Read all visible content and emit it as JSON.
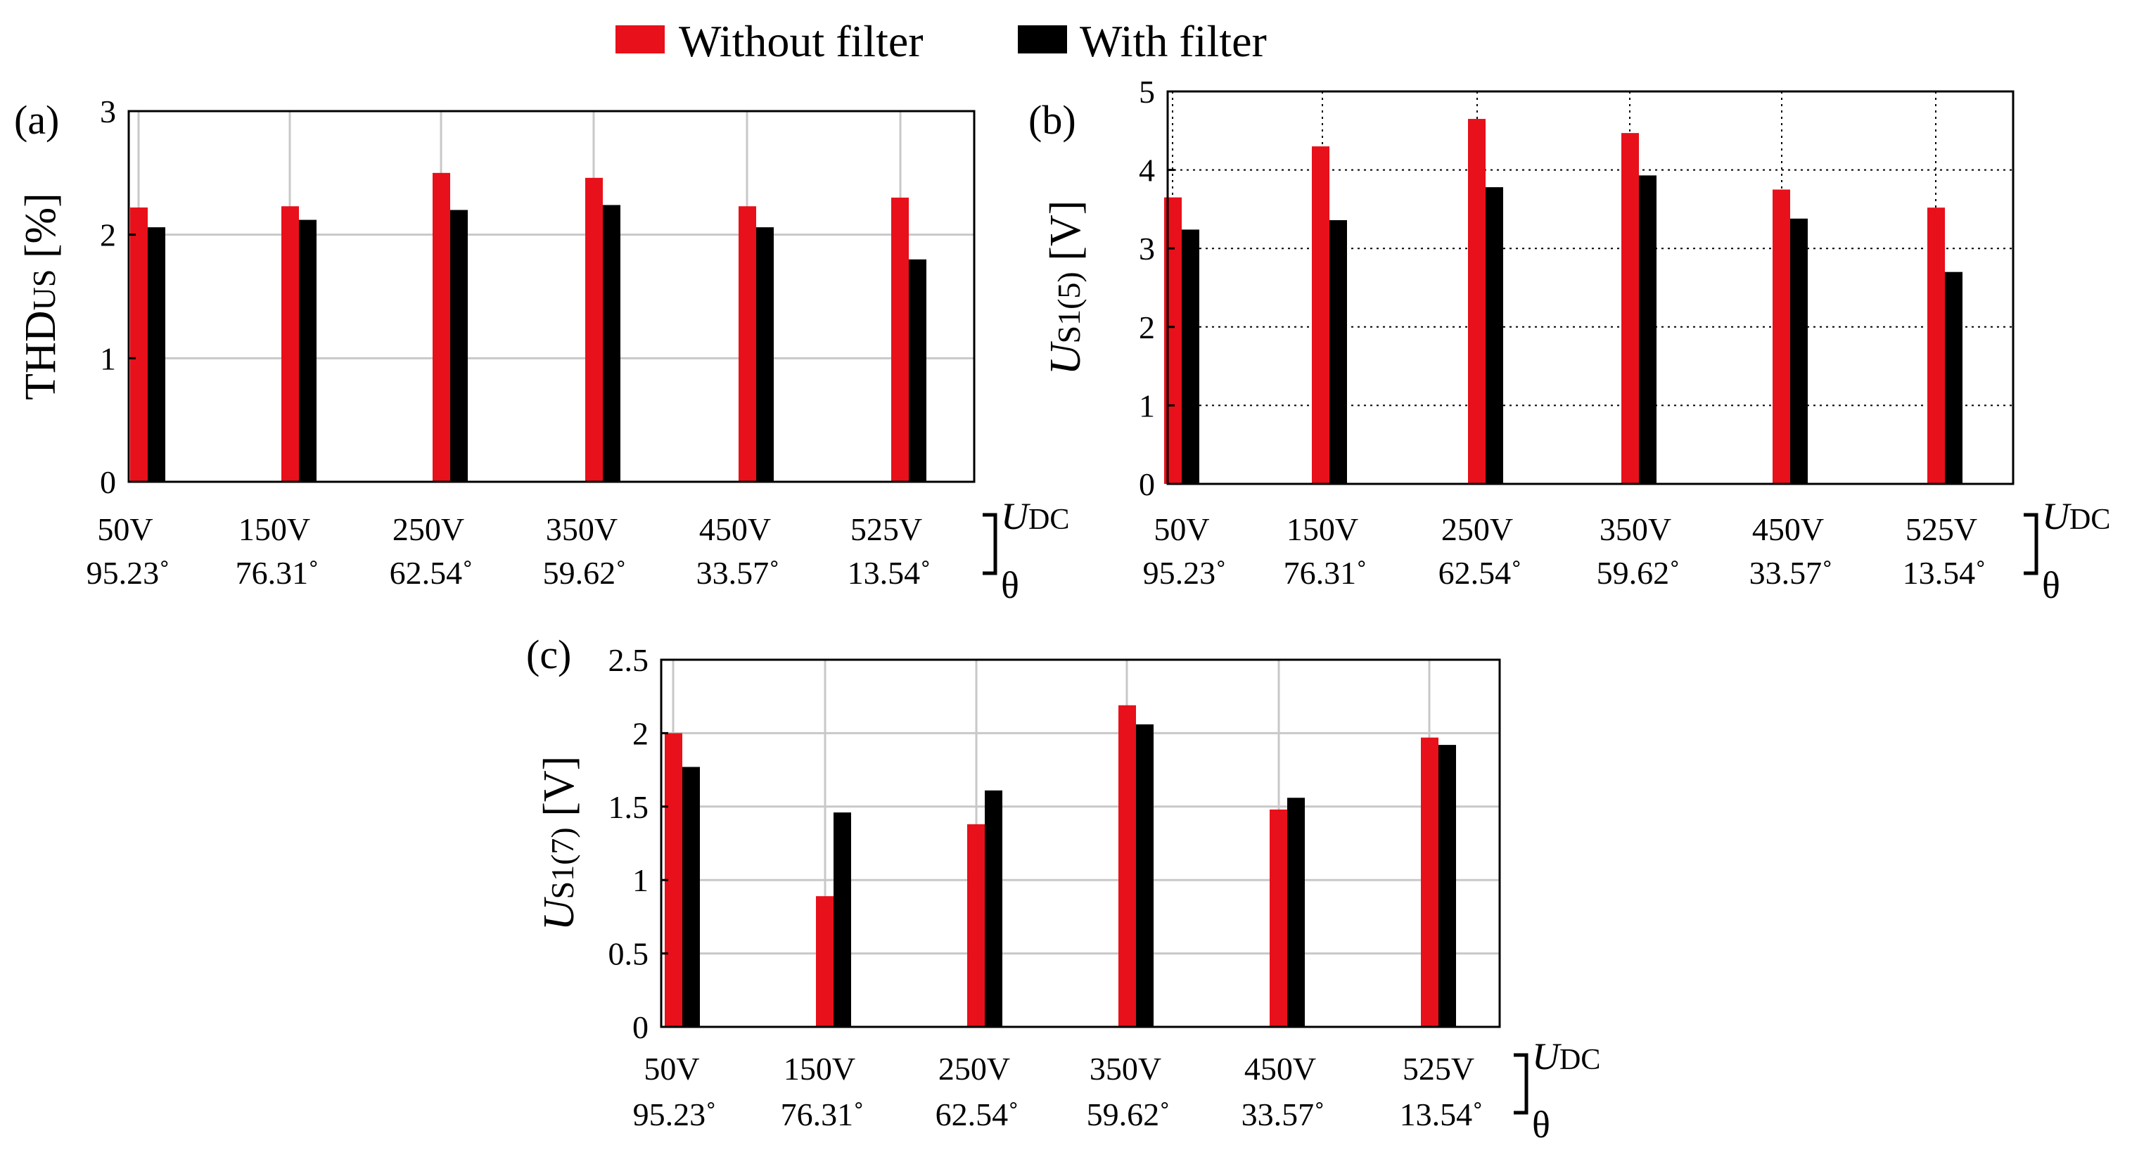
{
  "colors": {
    "without": "#e8101a",
    "with": "#000000",
    "grid": "#c8c8c8",
    "axis": "#000000"
  },
  "legend": {
    "without_label": "Without filter",
    "with_label": "With filter"
  },
  "chart_data": [
    {
      "id": "a",
      "type": "bar",
      "panel_label": "(a)",
      "ylabel_main": "THD",
      "ylabel_sub": "US",
      "ylabel_suffix": " [%]",
      "ylim": [
        0,
        3
      ],
      "yticks": [
        "0",
        "1",
        "2",
        "3"
      ],
      "grid": "solid-vertical-and-horizontal",
      "categories": [
        "50V",
        "150V",
        "250V",
        "350V",
        "450V",
        "525V"
      ],
      "categories2": [
        "95.23˚",
        "76.31˚",
        "62.54˚",
        "59.62˚",
        "33.57˚",
        "13.54˚"
      ],
      "bracket_top_italic": "U",
      "bracket_top_sub": "DC",
      "bracket_bottom": "θ",
      "series": [
        {
          "name": "Without filter",
          "values": [
            2.22,
            2.23,
            2.5,
            2.46,
            2.23,
            2.3
          ]
        },
        {
          "name": "With filter",
          "values": [
            2.06,
            2.12,
            2.2,
            2.24,
            2.06,
            1.8
          ]
        }
      ]
    },
    {
      "id": "b",
      "type": "bar",
      "panel_label": "(b)",
      "ylabel_main": "U",
      "ylabel_sub": "S1(5)",
      "ylabel_suffix": " [V]",
      "ylim": [
        0,
        5
      ],
      "yticks": [
        "0",
        "1",
        "2",
        "3",
        "4",
        "5"
      ],
      "grid": "dotted",
      "categories": [
        "50V",
        "150V",
        "250V",
        "350V",
        "450V",
        "525V"
      ],
      "categories2": [
        "95.23˚",
        "76.31˚",
        "62.54˚",
        "59.62˚",
        "33.57˚",
        "13.54˚"
      ],
      "bracket_top_italic": "U",
      "bracket_top_sub": "DC",
      "bracket_bottom": "θ",
      "series": [
        {
          "name": "Without filter",
          "values": [
            3.65,
            4.3,
            4.65,
            4.47,
            3.75,
            3.52
          ]
        },
        {
          "name": "With filter",
          "values": [
            3.24,
            3.36,
            3.78,
            3.93,
            3.38,
            2.7
          ]
        }
      ]
    },
    {
      "id": "c",
      "type": "bar",
      "panel_label": "(c)",
      "ylabel_main": "U",
      "ylabel_sub": "S1(7)",
      "ylabel_suffix": " [V]",
      "ylim": [
        0,
        2.5
      ],
      "yticks": [
        "0",
        "0.5",
        "1",
        "1.5",
        "2",
        "2.5"
      ],
      "grid": "solid-vertical-and-horizontal",
      "categories": [
        "50V",
        "150V",
        "250V",
        "350V",
        "450V",
        "525V"
      ],
      "categories2": [
        "95.23˚",
        "76.31˚",
        "62.54˚",
        "59.62˚",
        "33.57˚",
        "13.54˚"
      ],
      "bracket_top_italic": "U",
      "bracket_top_sub": "DC",
      "bracket_bottom": "θ",
      "series": [
        {
          "name": "Without filter",
          "values": [
            2.0,
            0.89,
            1.38,
            2.19,
            1.48,
            1.97
          ]
        },
        {
          "name": "With filter",
          "values": [
            1.77,
            1.46,
            1.61,
            2.06,
            1.56,
            1.92
          ]
        }
      ]
    }
  ]
}
